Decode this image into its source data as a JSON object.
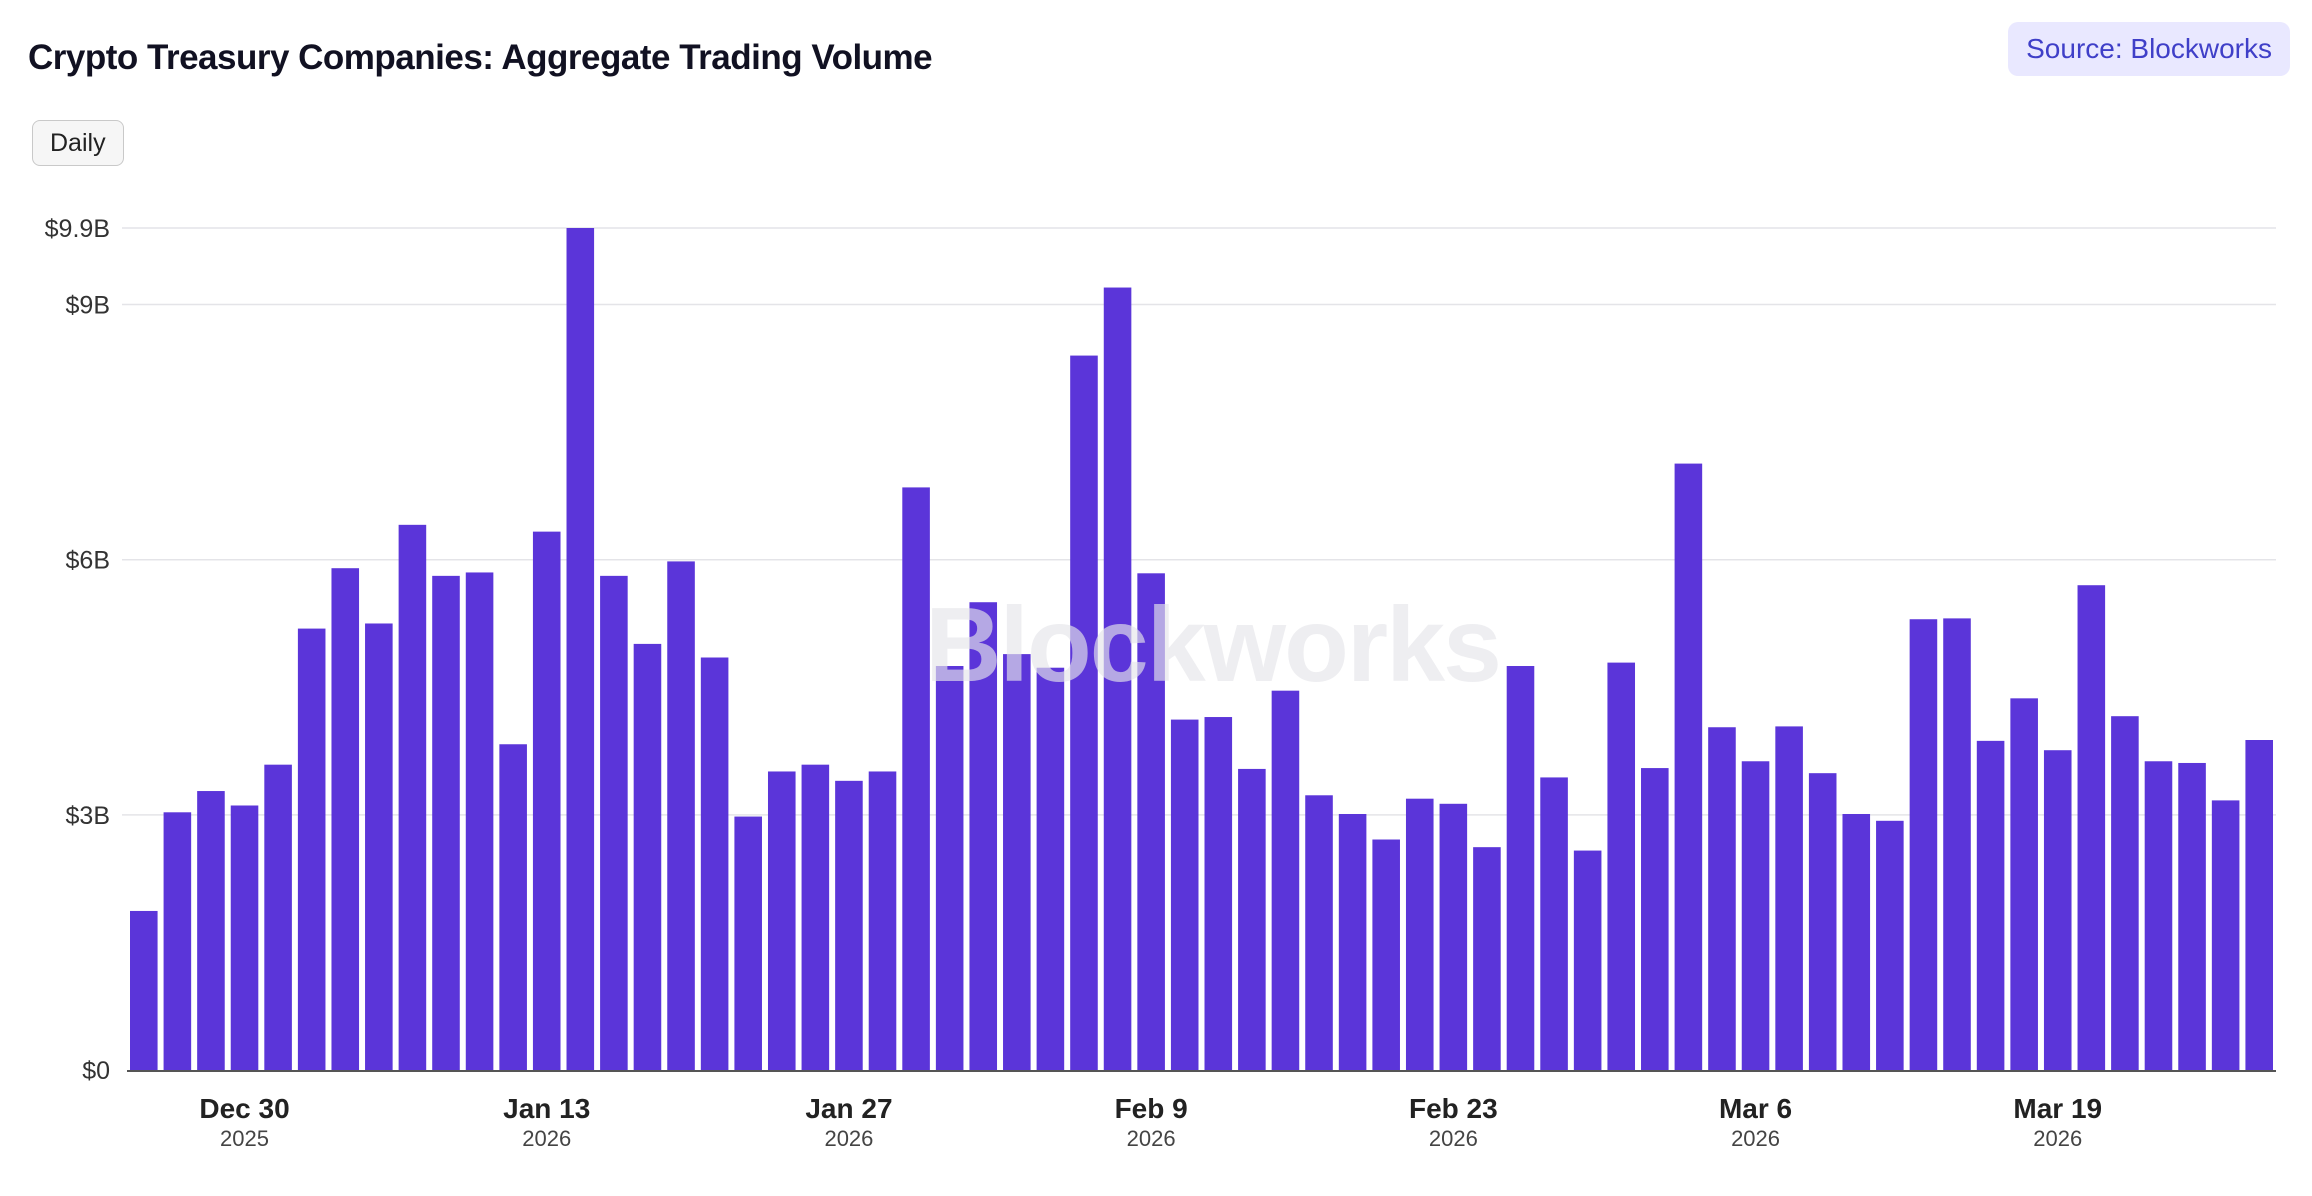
{
  "header": {
    "title": "Crypto Treasury Companies: Aggregate Trading Volume",
    "source_label": "Source: Blockworks",
    "range_button_label": "Daily"
  },
  "watermark": "Blockworks",
  "colors": {
    "bar": "#5b35d9",
    "grid": "#e4e4e8",
    "axis": "#555555",
    "text": "#111122",
    "badge_bg": "#e9e8ff",
    "badge_text": "#3f3fc8"
  },
  "chart_data": {
    "type": "bar",
    "title": "Crypto Treasury Companies: Aggregate Trading Volume",
    "xlabel": "",
    "ylabel": "",
    "ylim": [
      0,
      9.9
    ],
    "y_unit": "billions USD",
    "y_ticks": [
      {
        "value": 0,
        "label": "$0"
      },
      {
        "value": 3,
        "label": "$3B"
      },
      {
        "value": 6,
        "label": "$6B"
      },
      {
        "value": 9,
        "label": "$9B"
      },
      {
        "value": 9.9,
        "label": "$9.9B"
      }
    ],
    "x_ticks": [
      {
        "index": 3,
        "label": "Dec 30",
        "sublabel": "2025"
      },
      {
        "index": 12,
        "label": "Jan 13",
        "sublabel": "2026"
      },
      {
        "index": 21,
        "label": "Jan 27",
        "sublabel": "2026"
      },
      {
        "index": 30,
        "label": "Feb 9",
        "sublabel": "2026"
      },
      {
        "index": 39,
        "label": "Feb 23",
        "sublabel": "2026"
      },
      {
        "index": 48,
        "label": "Mar 6",
        "sublabel": "2026"
      },
      {
        "index": 57,
        "label": "Mar 19",
        "sublabel": "2026"
      }
    ],
    "values": [
      1.87,
      3.03,
      3.28,
      3.11,
      3.59,
      5.19,
      5.9,
      5.25,
      6.41,
      5.81,
      5.85,
      3.83,
      6.33,
      9.9,
      5.81,
      5.01,
      5.98,
      4.85,
      2.98,
      3.51,
      3.59,
      3.4,
      3.51,
      6.85,
      4.75,
      5.5,
      4.89,
      4.73,
      8.4,
      9.2,
      5.84,
      4.12,
      4.15,
      3.54,
      4.46,
      3.23,
      3.01,
      2.71,
      3.19,
      3.13,
      2.62,
      4.75,
      3.44,
      2.58,
      4.79,
      3.55,
      7.13,
      4.03,
      3.63,
      4.04,
      3.49,
      3.01,
      2.93,
      5.3,
      5.31,
      3.87,
      4.37,
      3.76,
      5.7,
      4.16,
      3.63,
      3.61,
      3.17,
      3.88
    ]
  }
}
